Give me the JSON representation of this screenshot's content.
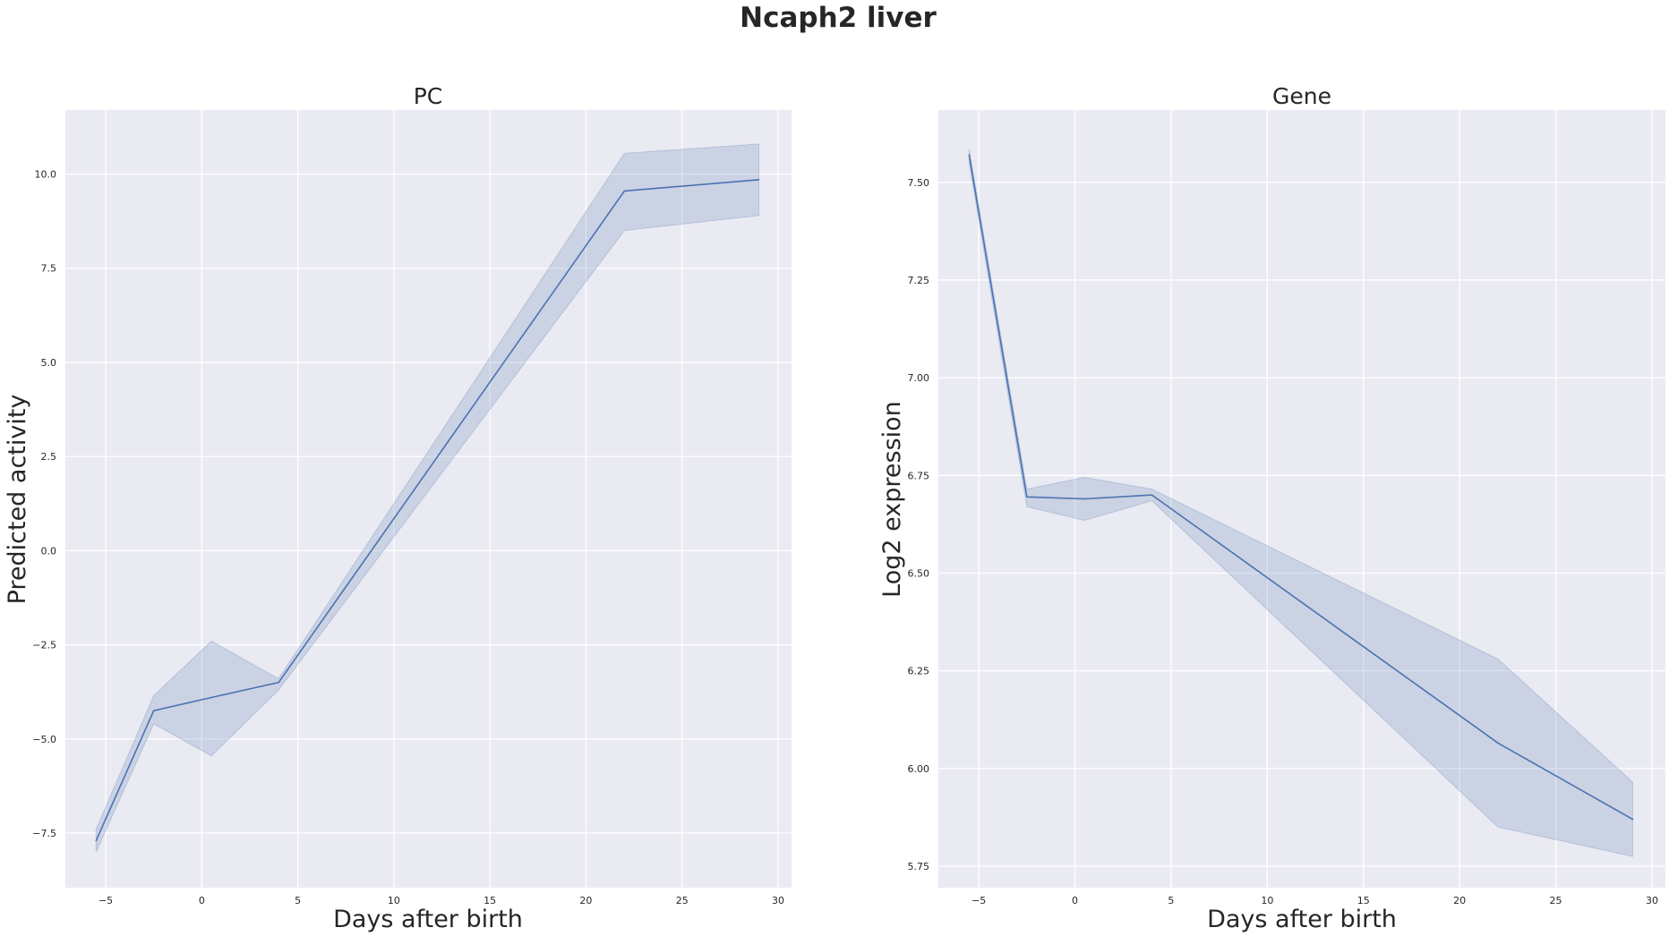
{
  "figure": {
    "suptitle": "Ncaph2 liver",
    "background": "#ffffff",
    "axes_facecolor": "#eaeaf2",
    "grid_color": "#ffffff",
    "line_color": "#4c72b0"
  },
  "chart_data": [
    {
      "type": "line",
      "title": "PC",
      "xlabel": "Days after birth",
      "ylabel": "Predicted activity",
      "xlim": [
        -7.1,
        30.7
      ],
      "ylim": [
        -8.95,
        11.7
      ],
      "xticks": [
        -5,
        0,
        5,
        10,
        15,
        20,
        25,
        30
      ],
      "xtick_labels": [
        "−5",
        "0",
        "5",
        "10",
        "15",
        "20",
        "25",
        "30"
      ],
      "yticks": [
        -7.5,
        -5.0,
        -2.5,
        0.0,
        2.5,
        5.0,
        7.5,
        10.0
      ],
      "ytick_labels": [
        "−7.5",
        "−5.0",
        "−2.5",
        "0.0",
        "2.5",
        "5.0",
        "7.5",
        "10.0"
      ],
      "grid": true,
      "x": [
        -5.5,
        -2.5,
        0.5,
        4,
        22,
        29
      ],
      "series": [
        {
          "values": [
            -7.7,
            -4.25,
            -3.9,
            -3.5,
            9.55,
            9.85
          ],
          "ci_lower": [
            -8.0,
            -4.6,
            -5.45,
            -3.7,
            8.5,
            8.9
          ],
          "ci_upper": [
            -7.4,
            -3.85,
            -2.4,
            -3.4,
            10.55,
            10.8
          ]
        }
      ]
    },
    {
      "type": "line",
      "title": "Gene",
      "xlabel": "Days after birth",
      "ylabel": "Log2 expression",
      "xlim": [
        -7.1,
        30.7
      ],
      "ylim": [
        5.695,
        7.685
      ],
      "xticks": [
        -5,
        0,
        5,
        10,
        15,
        20,
        25,
        30
      ],
      "xtick_labels": [
        "−5",
        "0",
        "5",
        "10",
        "15",
        "20",
        "25",
        "30"
      ],
      "yticks": [
        5.75,
        6.0,
        6.25,
        6.5,
        6.75,
        7.0,
        7.25,
        7.5
      ],
      "ytick_labels": [
        "5.75",
        "6.00",
        "6.25",
        "6.50",
        "6.75",
        "7.00",
        "7.25",
        "7.50"
      ],
      "grid": true,
      "x": [
        -5.5,
        -2.5,
        0.5,
        4,
        22,
        29
      ],
      "series": [
        {
          "values": [
            7.57,
            6.695,
            6.69,
            6.7,
            6.065,
            5.87
          ],
          "ci_lower": [
            7.55,
            6.67,
            6.635,
            6.685,
            5.85,
            5.775
          ],
          "ci_upper": [
            7.585,
            6.715,
            6.745,
            6.715,
            6.28,
            5.965
          ]
        }
      ]
    }
  ]
}
